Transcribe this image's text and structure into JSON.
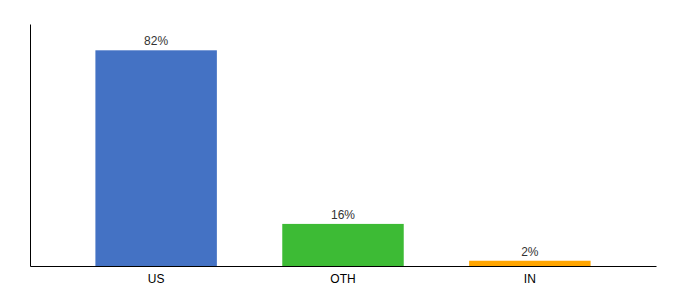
{
  "chart_data": {
    "type": "bar",
    "categories": [
      "US",
      "OTH",
      "IN"
    ],
    "values": [
      82,
      16,
      2
    ],
    "value_labels": [
      "82%",
      "16%",
      "2%"
    ],
    "colors": [
      "#4472c4",
      "#3dbb35",
      "#ffa500"
    ],
    "ylim": [
      0,
      92
    ],
    "data_labels": true,
    "tick_labels": "x"
  }
}
